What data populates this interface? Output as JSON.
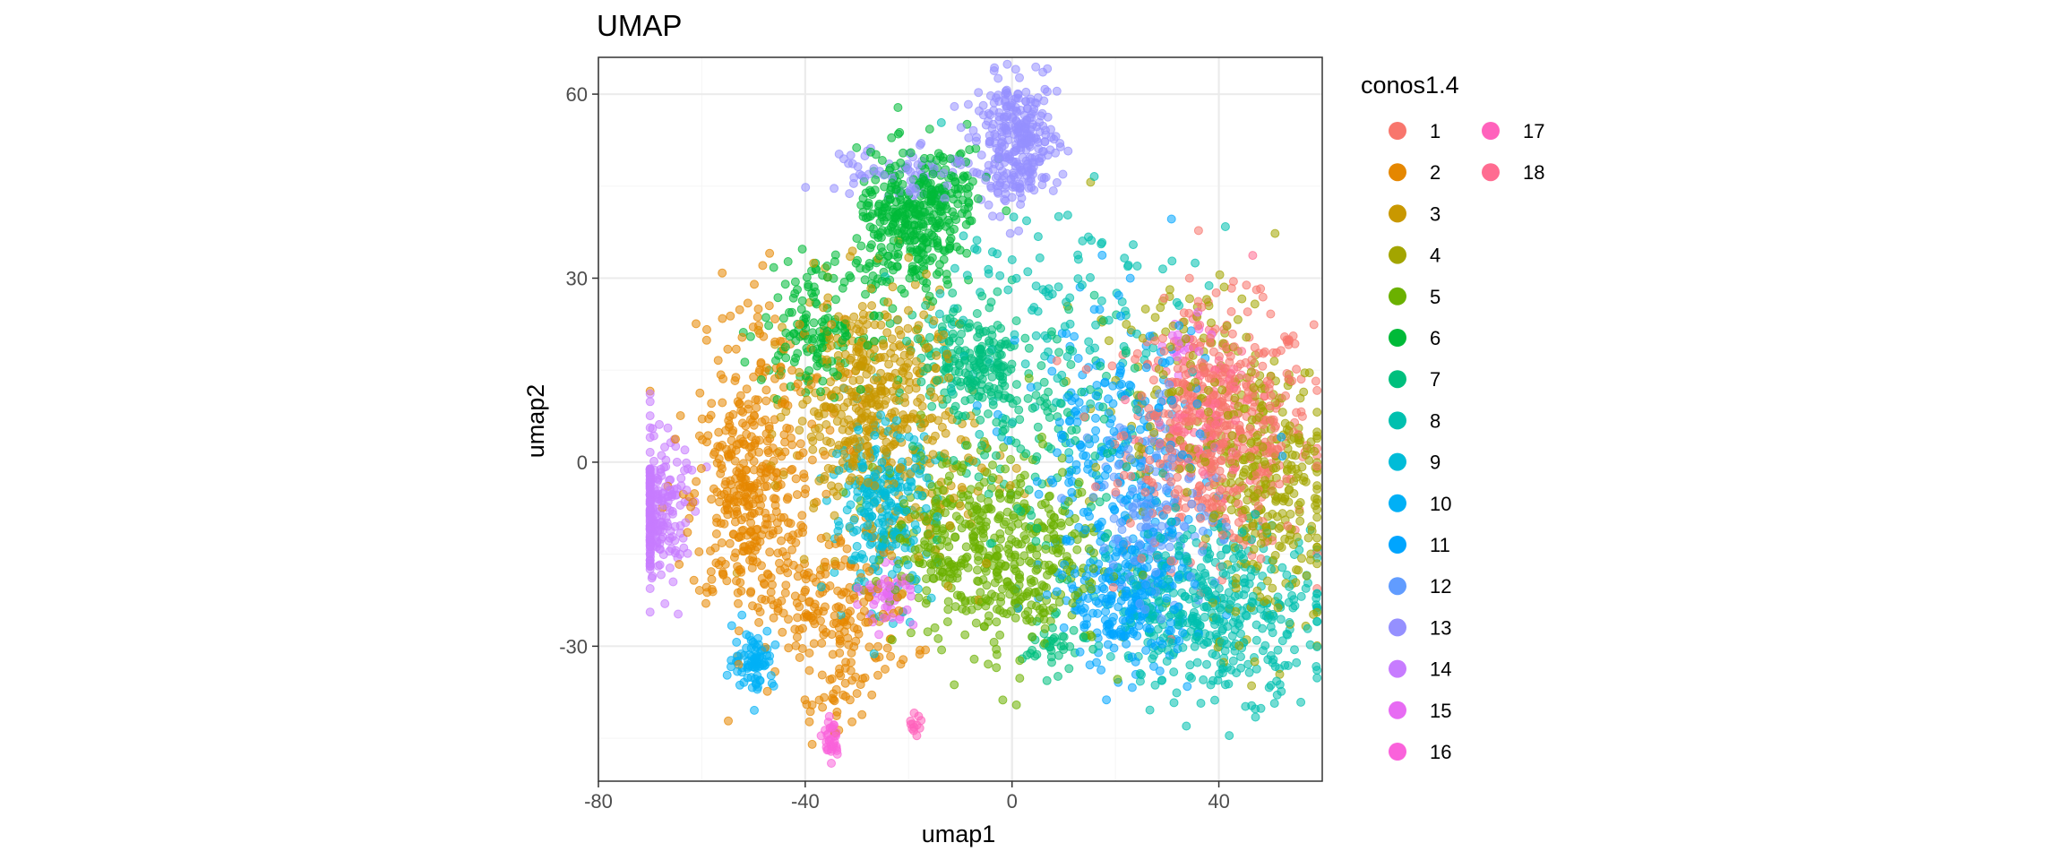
{
  "chart_data": {
    "type": "scatter",
    "title": "UMAP",
    "xlabel": "umap1",
    "ylabel": "umap2",
    "xlim": [
      -80,
      60
    ],
    "ylim": [
      -52,
      66
    ],
    "xticks": [
      -80,
      -40,
      0,
      40
    ],
    "yticks": [
      -30,
      0,
      30,
      60
    ],
    "grid": true,
    "legend": {
      "title": "conos1.4",
      "placement": "right",
      "columns": 2
    },
    "series": [
      {
        "name": "1",
        "color": "#F8766D",
        "clusters": [
          {
            "cx": 40,
            "cy": 5,
            "sx": 9,
            "sy": 10,
            "n": 520
          }
        ]
      },
      {
        "name": "2",
        "color": "#E58700",
        "clusters": [
          {
            "cx": -52,
            "cy": -6,
            "sx": 5,
            "sy": 9,
            "n": 300
          },
          {
            "cx": -35,
            "cy": -24,
            "sx": 8,
            "sy": 7,
            "n": 220
          },
          {
            "cx": -45,
            "cy": 10,
            "sx": 8,
            "sy": 10,
            "n": 120
          },
          {
            "cx": -34,
            "cy": -37,
            "sx": 2.5,
            "sy": 3,
            "n": 25
          }
        ]
      },
      {
        "name": "3",
        "color": "#C99800",
        "clusters": [
          {
            "cx": -28,
            "cy": 10,
            "sx": 7,
            "sy": 9,
            "n": 380
          },
          {
            "cx": -20,
            "cy": 0,
            "sx": 10,
            "sy": 12,
            "n": 120
          }
        ]
      },
      {
        "name": "4",
        "color": "#A3A500",
        "clusters": [
          {
            "cx": 50,
            "cy": -4,
            "sx": 6,
            "sy": 12,
            "n": 280
          },
          {
            "cx": 35,
            "cy": 10,
            "sx": 10,
            "sy": 10,
            "n": 150
          }
        ]
      },
      {
        "name": "5",
        "color": "#6BB100",
        "clusters": [
          {
            "cx": 0,
            "cy": -15,
            "sx": 9,
            "sy": 8,
            "n": 380
          },
          {
            "cx": -15,
            "cy": -12,
            "sx": 6,
            "sy": 8,
            "n": 150
          }
        ]
      },
      {
        "name": "6",
        "color": "#00BA38",
        "clusters": [
          {
            "cx": -20,
            "cy": 38,
            "sx": 5,
            "sy": 6,
            "n": 320
          },
          {
            "cx": -38,
            "cy": 22,
            "sx": 5,
            "sy": 5,
            "n": 150
          },
          {
            "cx": -12,
            "cy": 44,
            "sx": 4,
            "sy": 4,
            "n": 80
          }
        ]
      },
      {
        "name": "7",
        "color": "#00BF7D",
        "clusters": [
          {
            "cx": -8,
            "cy": 16,
            "sx": 5,
            "sy": 5,
            "n": 180
          },
          {
            "cx": 8,
            "cy": -30,
            "sx": 3,
            "sy": 2,
            "n": 40
          },
          {
            "cx": 5,
            "cy": 5,
            "sx": 10,
            "sy": 10,
            "n": 150
          }
        ]
      },
      {
        "name": "8",
        "color": "#00C0AF",
        "clusters": [
          {
            "cx": 40,
            "cy": -24,
            "sx": 10,
            "sy": 7,
            "n": 420
          },
          {
            "cx": 5,
            "cy": 25,
            "sx": 15,
            "sy": 10,
            "n": 120
          }
        ]
      },
      {
        "name": "9",
        "color": "#00BCD8",
        "clusters": [
          {
            "cx": -25,
            "cy": -8,
            "sx": 5,
            "sy": 7,
            "n": 260
          }
        ]
      },
      {
        "name": "10",
        "color": "#00B0F6",
        "clusters": [
          {
            "cx": -50,
            "cy": -32,
            "sx": 2,
            "sy": 2.5,
            "n": 80
          }
        ]
      },
      {
        "name": "11",
        "color": "#00A5FF",
        "clusters": [
          {
            "cx": 23,
            "cy": -22,
            "sx": 6,
            "sy": 6,
            "n": 260
          },
          {
            "cx": 20,
            "cy": 0,
            "sx": 9,
            "sy": 12,
            "n": 250
          }
        ]
      },
      {
        "name": "12",
        "color": "#619CFF",
        "clusters": [
          {
            "cx": 28,
            "cy": -8,
            "sx": 6,
            "sy": 8,
            "n": 150
          }
        ]
      },
      {
        "name": "13",
        "color": "#9590FF",
        "clusters": [
          {
            "cx": 1,
            "cy": 52,
            "sx": 4,
            "sy": 5,
            "n": 300
          },
          {
            "cx": -22,
            "cy": 48,
            "sx": 7,
            "sy": 2.5,
            "n": 70
          }
        ]
      },
      {
        "name": "14",
        "color": "#C77CFF",
        "clusters": [
          {
            "cx": -69,
            "cy": -8,
            "sx": 3,
            "sy": 6,
            "n": 240
          }
        ]
      },
      {
        "name": "15",
        "color": "#E76BF3",
        "clusters": [
          {
            "cx": -24,
            "cy": -22,
            "sx": 2.5,
            "sy": 2.5,
            "n": 50
          },
          {
            "cx": 33,
            "cy": 19,
            "sx": 2,
            "sy": 2,
            "n": 20
          }
        ]
      },
      {
        "name": "16",
        "color": "#FA62DB",
        "clusters": [
          {
            "cx": -35,
            "cy": -45,
            "sx": 0.8,
            "sy": 2,
            "n": 35
          }
        ]
      },
      {
        "name": "17",
        "color": "#FF62BC",
        "clusters": [
          {
            "cx": -19,
            "cy": -43,
            "sx": 0.7,
            "sy": 1,
            "n": 12
          }
        ]
      },
      {
        "name": "18",
        "color": "#FF6C91",
        "clusters": [
          {
            "cx": 37,
            "cy": 8,
            "sx": 5,
            "sy": 6,
            "n": 100
          }
        ]
      }
    ]
  }
}
